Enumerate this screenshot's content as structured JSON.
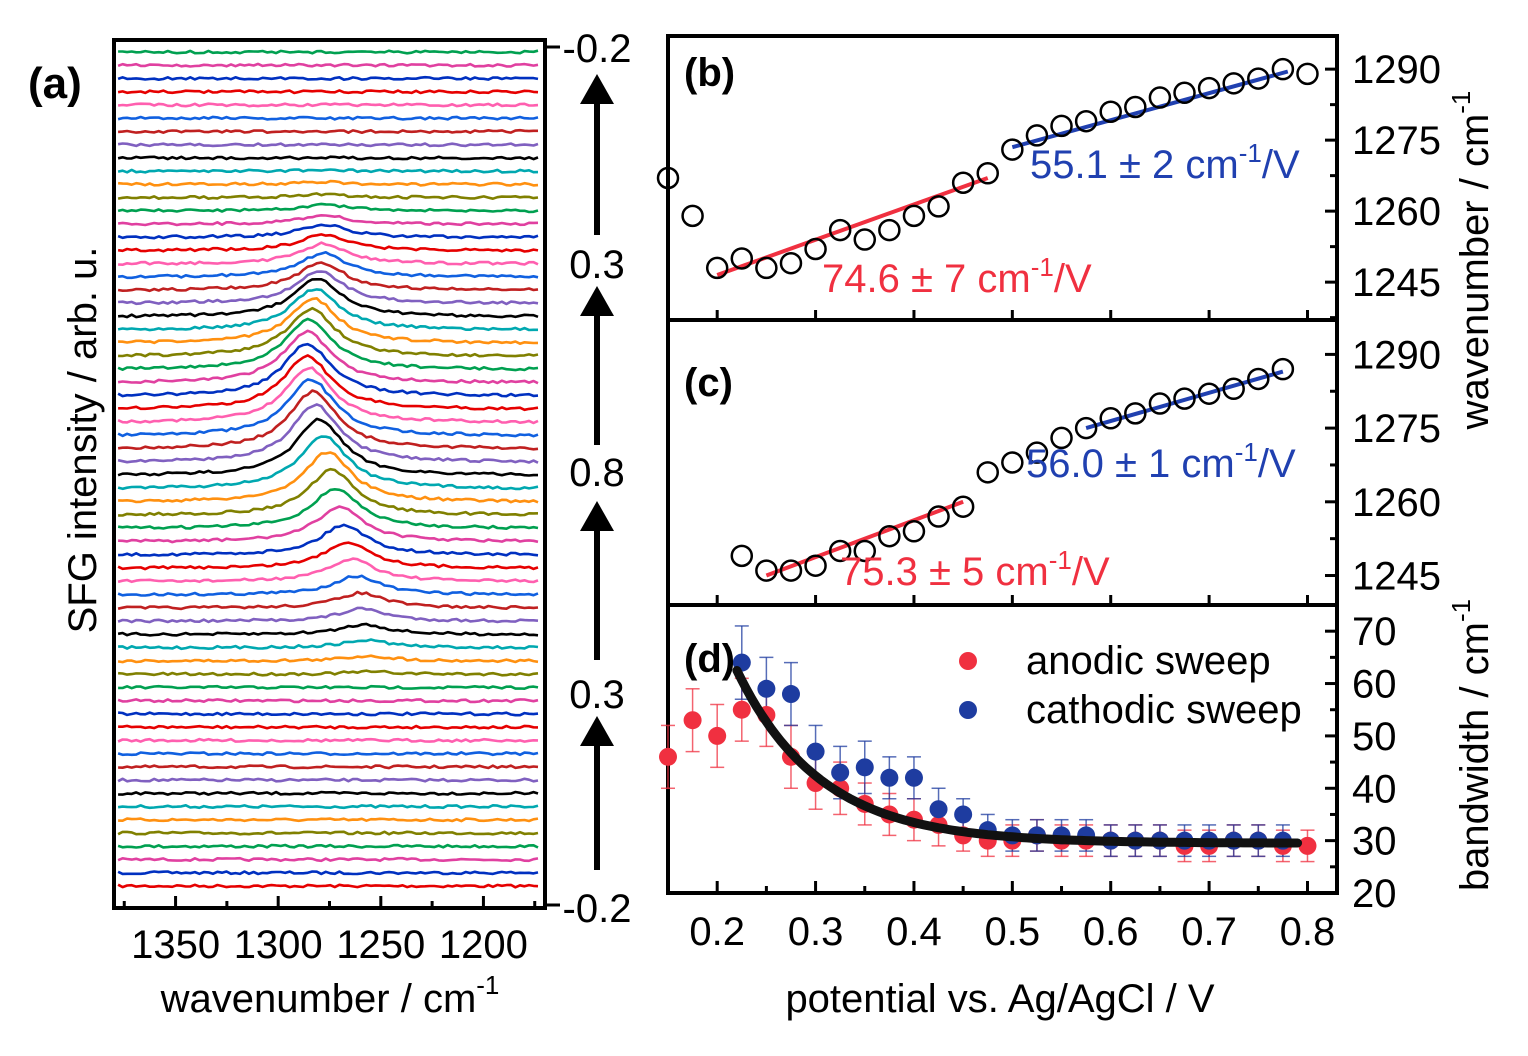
{
  "colors": {
    "red": "#f03040",
    "blue": "#1e3ca0",
    "fit_red": "#f03040",
    "fit_blue": "#2040b0",
    "trace_cycle": [
      "#e60000",
      "#0030c0",
      "#e040a0",
      "#00a050",
      "#808000",
      "#ff9010",
      "#00a8b0",
      "#000000",
      "#8060c0",
      "#c02020",
      "#1060e0",
      "#ff5faf"
    ]
  },
  "chart_data": [
    {
      "panel": "(a)",
      "type": "line",
      "xlabel": "wavenumber / cm-1",
      "xlabel_main": "wavenumber / cm",
      "xlabel_sup": "-1",
      "ylabel": "SFG intensity / arb. u.",
      "xlim": [
        1380,
        1170
      ],
      "xticks": [
        "1350",
        "1300",
        "1250",
        "1200"
      ],
      "xtick_values": [
        1350,
        1300,
        1250,
        1200
      ],
      "n_traces": 64,
      "description_of_series": "stacked spectra; peak amplitudes and centers per trace (bottom to top)",
      "peak_amplitude": [
        0,
        0,
        0,
        0,
        0,
        0,
        0,
        0,
        0,
        0,
        0,
        0,
        0,
        0,
        0,
        0,
        0.2,
        0.4,
        0.6,
        0.8,
        1.0,
        1.2,
        1.5,
        1.8,
        2.1,
        2.4,
        2.8,
        3.2,
        3.6,
        4.0,
        4.3,
        4.5,
        4.6,
        4.6,
        4.5,
        4.4,
        4.3,
        4.2,
        4.1,
        4.0,
        3.8,
        3.6,
        3.3,
        3.0,
        2.6,
        2.2,
        1.9,
        1.6,
        1.3,
        1.0,
        0.7,
        0.5,
        0.3,
        0.2,
        0.1,
        0,
        0,
        0,
        0,
        0,
        0,
        0,
        0,
        0
      ],
      "peak_center": [
        1255,
        1255,
        1255,
        1255,
        1255,
        1255,
        1255,
        1255,
        1255,
        1255,
        1255,
        1255,
        1255,
        1255,
        1255,
        1255,
        1255,
        1256,
        1257,
        1258,
        1259,
        1260,
        1262,
        1264,
        1266,
        1268,
        1270,
        1272,
        1274,
        1276,
        1278,
        1280,
        1282,
        1283,
        1284,
        1285,
        1286,
        1286,
        1286,
        1285,
        1284,
        1283,
        1282,
        1281,
        1280,
        1279,
        1278,
        1278,
        1278,
        1278,
        1278,
        1278,
        1278,
        1278,
        1278,
        1278,
        1278,
        1278,
        1278,
        1278,
        1278,
        1278,
        1278,
        1278
      ],
      "potential_axis": {
        "labels": [
          "-0.2",
          "0.3",
          "0.8",
          "0.3",
          "-0.2"
        ],
        "arrow_direction": "up"
      }
    },
    {
      "panel": "(b)",
      "type": "scatter",
      "ylabel": "wavenumber / cm-1",
      "ylim": [
        1237,
        1297
      ],
      "yticks": [
        "1245",
        "1260",
        "1275",
        "1290"
      ],
      "ytick_values": [
        1245,
        1260,
        1275,
        1290
      ],
      "x": [
        0.15,
        0.175,
        0.2,
        0.225,
        0.25,
        0.275,
        0.3,
        0.325,
        0.35,
        0.375,
        0.4,
        0.425,
        0.45,
        0.475,
        0.5,
        0.525,
        0.55,
        0.575,
        0.6,
        0.625,
        0.65,
        0.675,
        0.7,
        0.725,
        0.75,
        0.775,
        0.8
      ],
      "y": [
        1267,
        1259,
        1248,
        1250,
        1248,
        1249,
        1252,
        1256,
        1254,
        1256,
        1259,
        1261,
        1266,
        1268,
        1273,
        1276,
        1278,
        1279,
        1281,
        1282,
        1284,
        1285,
        1286,
        1287,
        1288,
        1290,
        1289
      ],
      "fits": [
        {
          "label_main": "74.6 ± 7 cm",
          "label_sup": "-1",
          "label_end": "/V",
          "color": "red",
          "x": [
            0.2,
            0.475
          ],
          "y": [
            1246.5,
            1267
          ]
        },
        {
          "label_main": "55.1 ± 2 cm",
          "label_sup": "-1",
          "label_end": "/V",
          "color": "blue",
          "x": [
            0.5,
            0.78
          ],
          "y": [
            1273.5,
            1289.5
          ]
        }
      ]
    },
    {
      "panel": "(c)",
      "type": "scatter",
      "ylabel": "wavenumber / cm-1",
      "ylim": [
        1239,
        1297
      ],
      "yticks": [
        "1245",
        "1260",
        "1275",
        "1290"
      ],
      "ytick_values": [
        1245,
        1260,
        1275,
        1290
      ],
      "x": [
        0.225,
        0.25,
        0.275,
        0.3,
        0.325,
        0.35,
        0.375,
        0.4,
        0.425,
        0.45,
        0.475,
        0.5,
        0.525,
        0.55,
        0.575,
        0.6,
        0.625,
        0.65,
        0.675,
        0.7,
        0.725,
        0.75,
        0.775
      ],
      "y": [
        1249,
        1246,
        1246,
        1247,
        1250,
        1250,
        1253,
        1254,
        1257,
        1259,
        1266,
        1268,
        1270,
        1273,
        1275,
        1277,
        1278,
        1280,
        1281,
        1282,
        1283,
        1285,
        1287
      ],
      "fits": [
        {
          "label_main": "75.3 ± 5 cm",
          "label_sup": "-1",
          "label_end": "/V",
          "color": "red",
          "x": [
            0.25,
            0.45
          ],
          "y": [
            1245,
            1260
          ]
        },
        {
          "label_main": "56.0 ± 1 cm",
          "label_sup": "-1",
          "label_end": "/V",
          "color": "blue",
          "x": [
            0.575,
            0.775
          ],
          "y": [
            1275,
            1286.5
          ]
        }
      ]
    },
    {
      "panel": "(d)",
      "type": "scatter",
      "xlabel": "potential vs. Ag/AgCl / V",
      "ylabel": "bandwidth / cm-1",
      "xlim": [
        0.15,
        0.83
      ],
      "ylim": [
        20,
        75
      ],
      "xticks": [
        "0.2",
        "0.3",
        "0.4",
        "0.5",
        "0.6",
        "0.7",
        "0.8"
      ],
      "xtick_values": [
        0.2,
        0.3,
        0.4,
        0.5,
        0.6,
        0.7,
        0.8
      ],
      "yticks": [
        "20",
        "30",
        "40",
        "50",
        "60",
        "70"
      ],
      "ytick_values": [
        20,
        30,
        40,
        50,
        60,
        70
      ],
      "series": [
        {
          "name": "anodic sweep",
          "color": "red",
          "x": [
            0.15,
            0.175,
            0.2,
            0.225,
            0.25,
            0.275,
            0.3,
            0.325,
            0.35,
            0.375,
            0.4,
            0.425,
            0.45,
            0.475,
            0.5,
            0.525,
            0.55,
            0.575,
            0.6,
            0.625,
            0.65,
            0.675,
            0.7,
            0.725,
            0.75,
            0.775,
            0.8
          ],
          "y": [
            46,
            53,
            50,
            55,
            54,
            46,
            41,
            40,
            37,
            35,
            34,
            33,
            31,
            30,
            30,
            31,
            30,
            30,
            30,
            30,
            30,
            29,
            29,
            30,
            30,
            29,
            29
          ],
          "err": [
            6,
            6,
            6,
            6,
            6,
            6,
            5,
            5,
            4,
            4,
            4,
            4,
            3,
            3,
            3,
            3,
            3,
            3,
            3,
            3,
            3,
            3,
            3,
            3,
            3,
            3,
            3
          ]
        },
        {
          "name": "cathodic sweep",
          "color": "blue",
          "x": [
            0.225,
            0.25,
            0.275,
            0.3,
            0.325,
            0.35,
            0.375,
            0.4,
            0.425,
            0.45,
            0.475,
            0.5,
            0.525,
            0.55,
            0.575,
            0.6,
            0.625,
            0.65,
            0.675,
            0.7,
            0.725,
            0.75,
            0.775
          ],
          "y": [
            64,
            59,
            58,
            47,
            43,
            44,
            42,
            42,
            36,
            35,
            32,
            31,
            31,
            31,
            31,
            30,
            30,
            30,
            30,
            30,
            30,
            30,
            30
          ],
          "err": [
            7,
            6,
            6,
            5,
            5,
            5,
            4,
            4,
            4,
            3,
            3,
            3,
            3,
            3,
            3,
            3,
            3,
            3,
            3,
            3,
            3,
            3,
            3
          ]
        }
      ],
      "fit_curve": {
        "type": "exp_decay",
        "y0": 29.5,
        "A": 33,
        "x0": 0.22,
        "tau": 0.085,
        "x_range": [
          0.22,
          0.79
        ]
      }
    }
  ],
  "labels": {
    "a": "(a)",
    "b": "(b)",
    "c": "(c)",
    "d": "(d)",
    "xlabel_right": "potential vs. Ag/AgCl / V",
    "ylabel_right_top_main": "wavenumber / cm",
    "ylabel_right_top_sup": "-1",
    "ylabel_right_bottom_main": "bandwidth / cm",
    "ylabel_right_bottom_sup": "-1",
    "legend_anodic": "anodic sweep",
    "legend_cathodic": "cathodic sweep"
  }
}
